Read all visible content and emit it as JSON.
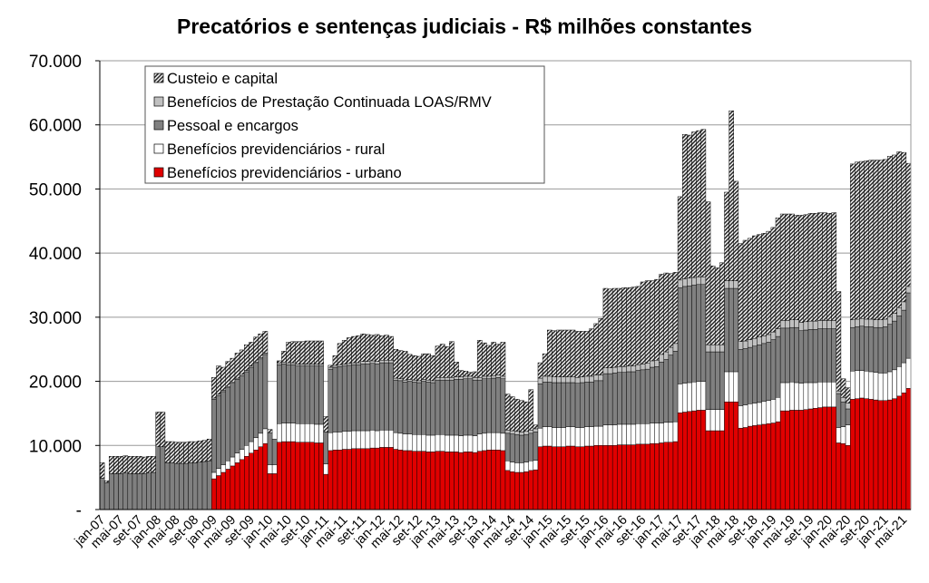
{
  "chart_data": {
    "type": "bar",
    "stacked": true,
    "title": "Precatórios e sentenças judiciais - R$ milhões constantes",
    "xlabel": "",
    "ylabel": "",
    "ylim": [
      0,
      70000
    ],
    "yticks": [
      0,
      10000,
      20000,
      30000,
      40000,
      50000,
      60000,
      70000
    ],
    "ytick_labels": [
      "-",
      "10.000",
      "20.000",
      "30.000",
      "40.000",
      "50.000",
      "60.000",
      "70.000"
    ],
    "grid": true,
    "legend_placement": "top-left",
    "categories": [
      "jan-07",
      "fev-07",
      "mar-07",
      "abr-07",
      "mai-07",
      "jun-07",
      "jul-07",
      "ago-07",
      "set-07",
      "out-07",
      "nov-07",
      "dez-07",
      "jan-08",
      "fev-08",
      "mar-08",
      "abr-08",
      "mai-08",
      "jun-08",
      "jul-08",
      "ago-08",
      "set-08",
      "out-08",
      "nov-08",
      "dez-08",
      "jan-09",
      "fev-09",
      "mar-09",
      "abr-09",
      "mai-09",
      "jun-09",
      "jul-09",
      "ago-09",
      "set-09",
      "out-09",
      "nov-09",
      "dez-09",
      "jan-10",
      "fev-10",
      "mar-10",
      "abr-10",
      "mai-10",
      "jun-10",
      "jul-10",
      "ago-10",
      "set-10",
      "out-10",
      "nov-10",
      "dez-10",
      "jan-11",
      "fev-11",
      "mar-11",
      "abr-11",
      "mai-11",
      "jun-11",
      "jul-11",
      "ago-11",
      "set-11",
      "out-11",
      "nov-11",
      "dez-11",
      "jan-12",
      "fev-12",
      "mar-12",
      "abr-12",
      "mai-12",
      "jun-12",
      "jul-12",
      "ago-12",
      "set-12",
      "out-12",
      "nov-12",
      "dez-12",
      "jan-13",
      "fev-13",
      "mar-13",
      "abr-13",
      "mai-13",
      "jun-13",
      "jul-13",
      "ago-13",
      "set-13",
      "out-13",
      "nov-13",
      "dez-13",
      "jan-14",
      "fev-14",
      "mar-14",
      "abr-14",
      "mai-14",
      "jun-14",
      "jul-14",
      "ago-14",
      "set-14",
      "out-14",
      "nov-14",
      "dez-14",
      "jan-15",
      "fev-15",
      "mar-15",
      "abr-15",
      "mai-15",
      "jun-15",
      "jul-15",
      "ago-15",
      "set-15",
      "out-15",
      "nov-15",
      "dez-15",
      "jan-16",
      "fev-16",
      "mar-16",
      "abr-16",
      "mai-16",
      "jun-16",
      "jul-16",
      "ago-16",
      "set-16",
      "out-16",
      "nov-16",
      "dez-16",
      "jan-17",
      "fev-17",
      "mar-17",
      "abr-17",
      "mai-17",
      "jun-17",
      "jul-17",
      "ago-17",
      "set-17",
      "out-17",
      "nov-17",
      "dez-17",
      "jan-18",
      "fev-18",
      "mar-18",
      "abr-18",
      "mai-18",
      "jun-18",
      "jul-18",
      "ago-18",
      "set-18",
      "out-18",
      "nov-18",
      "dez-18",
      "jan-19",
      "fev-19",
      "mar-19",
      "abr-19",
      "mai-19",
      "jun-19",
      "jul-19",
      "ago-19",
      "set-19",
      "out-19",
      "nov-19",
      "dez-19",
      "jan-20",
      "fev-20",
      "mar-20",
      "abr-20",
      "mai-20",
      "jun-20",
      "jul-20",
      "ago-20",
      "set-20",
      "out-20",
      "nov-20",
      "dez-20",
      "jan-21",
      "fev-21",
      "mar-21",
      "abr-21",
      "mai-21",
      "jun-21"
    ],
    "series": [
      {
        "name": "Benefícios previdenciários - urbano",
        "color": "#e00000",
        "pattern": "solid",
        "values": [
          0,
          0,
          0,
          0,
          0,
          0,
          0,
          0,
          0,
          0,
          0,
          0,
          0,
          0,
          0,
          0,
          0,
          0,
          0,
          0,
          0,
          0,
          0,
          0,
          4800,
          5300,
          5800,
          6300,
          6800,
          7300,
          7800,
          8300,
          8800,
          9300,
          9800,
          10300,
          5600,
          5600,
          10500,
          10600,
          10600,
          10600,
          10500,
          10500,
          10500,
          10500,
          10400,
          10400,
          5500,
          9200,
          9300,
          9300,
          9400,
          9400,
          9500,
          9500,
          9500,
          9500,
          9600,
          9600,
          9700,
          9700,
          9700,
          9400,
          9300,
          9200,
          9200,
          9100,
          9100,
          9100,
          9000,
          9000,
          9100,
          9100,
          9000,
          9000,
          9000,
          8900,
          9000,
          9000,
          8900,
          9100,
          9200,
          9300,
          9300,
          9300,
          9200,
          6100,
          5900,
          5800,
          5800,
          5900,
          6100,
          6200,
          9800,
          9900,
          9900,
          9800,
          9800,
          9800,
          9900,
          9900,
          9800,
          9800,
          9900,
          9900,
          10000,
          10000,
          10000,
          10000,
          10000,
          10100,
          10100,
          10100,
          10100,
          10200,
          10200,
          10200,
          10300,
          10300,
          10400,
          10500,
          10500,
          10600,
          15100,
          15200,
          15300,
          15400,
          15500,
          15500,
          12300,
          12300,
          12300,
          12300,
          16800,
          16800,
          16800,
          12700,
          12800,
          13000,
          13100,
          13200,
          13300,
          13400,
          13500,
          13700,
          15400,
          15400,
          15500,
          15500,
          15500,
          15600,
          15700,
          15800,
          15900,
          16000,
          16000,
          16000,
          10400,
          10300,
          10000,
          17200,
          17300,
          17400,
          17300,
          17200,
          17100,
          17000,
          17000,
          17100,
          17300,
          17700,
          18200,
          18900
        ]
      },
      {
        "name": "Benefícios previdenciários - rural",
        "color": "#ffffff",
        "pattern": "solid",
        "values": [
          0,
          0,
          0,
          0,
          0,
          0,
          0,
          0,
          0,
          0,
          0,
          0,
          0,
          0,
          0,
          0,
          0,
          0,
          0,
          0,
          0,
          0,
          0,
          0,
          1000,
          1100,
          1200,
          1300,
          1400,
          1500,
          1600,
          1700,
          1800,
          1900,
          2100,
          2300,
          1400,
          1400,
          2900,
          2900,
          2900,
          2900,
          2900,
          2900,
          2900,
          2900,
          2900,
          2900,
          1600,
          2800,
          2800,
          2800,
          2800,
          2800,
          2800,
          2800,
          2800,
          2800,
          2800,
          2700,
          2700,
          2700,
          2700,
          2600,
          2600,
          2600,
          2600,
          2600,
          2600,
          2600,
          2600,
          2600,
          2600,
          2600,
          2600,
          2600,
          2600,
          2600,
          2600,
          2600,
          2600,
          2700,
          2700,
          2700,
          2700,
          2700,
          2700,
          1500,
          1500,
          1500,
          1500,
          1500,
          1500,
          1500,
          2900,
          3000,
          3000,
          3000,
          3000,
          3000,
          3000,
          3000,
          3000,
          3000,
          3000,
          3000,
          3000,
          3000,
          3200,
          3200,
          3200,
          3200,
          3200,
          3200,
          3200,
          3200,
          3200,
          3200,
          3200,
          3200,
          3100,
          3100,
          3100,
          3100,
          4500,
          4500,
          4500,
          4500,
          4500,
          4500,
          3300,
          3300,
          3300,
          3300,
          4700,
          4700,
          4700,
          3500,
          3500,
          3500,
          3500,
          3500,
          3600,
          3600,
          3700,
          3800,
          4400,
          4400,
          4400,
          4300,
          4200,
          4200,
          4100,
          4000,
          4000,
          3900,
          3900,
          3900,
          2400,
          2600,
          3200,
          4400,
          4400,
          4300,
          4300,
          4300,
          4300,
          4300,
          4300,
          4400,
          4500,
          4600,
          4700,
          4700
        ]
      },
      {
        "name": "Pessoal e encargos",
        "color": "#808080",
        "pattern": "solid",
        "values": [
          4900,
          4200,
          5600,
          5600,
          5600,
          5700,
          5600,
          5600,
          5600,
          5600,
          5700,
          5800,
          9800,
          9800,
          7300,
          7300,
          7200,
          7200,
          7200,
          7300,
          7300,
          7400,
          7500,
          7600,
          11400,
          11400,
          11400,
          11400,
          11500,
          11500,
          11500,
          11500,
          11600,
          11600,
          11600,
          11600,
          5000,
          4000,
          9200,
          9200,
          9100,
          9100,
          9000,
          9000,
          9000,
          9000,
          9100,
          9100,
          5000,
          9900,
          10100,
          10200,
          10200,
          10300,
          10300,
          10300,
          10400,
          10400,
          10400,
          10400,
          10500,
          10500,
          10500,
          8200,
          8200,
          8100,
          8200,
          8200,
          8100,
          8300,
          8300,
          8200,
          8500,
          8500,
          8600,
          8600,
          8700,
          8800,
          8800,
          8800,
          8700,
          8400,
          8500,
          8400,
          8500,
          8600,
          8500,
          4300,
          4400,
          4400,
          4300,
          4300,
          4300,
          4400,
          6900,
          7000,
          7000,
          7000,
          7000,
          7000,
          6900,
          6900,
          6900,
          7000,
          7000,
          7000,
          7100,
          7100,
          8000,
          8000,
          8100,
          8100,
          8100,
          8200,
          8200,
          8300,
          8400,
          8500,
          8700,
          8800,
          9500,
          9800,
          10500,
          11000,
          15000,
          15100,
          15100,
          15100,
          15100,
          15100,
          9000,
          9000,
          9000,
          9000,
          13000,
          13000,
          13000,
          8800,
          8800,
          8800,
          8900,
          9000,
          9000,
          9100,
          9300,
          9500,
          8500,
          8500,
          8500,
          8600,
          8200,
          8200,
          8300,
          8300,
          8300,
          8300,
          8300,
          8300,
          5300,
          3900,
          2500,
          6800,
          6800,
          6900,
          6900,
          7000,
          7000,
          7100,
          7200,
          7400,
          7600,
          7900,
          8200,
          10200
        ]
      },
      {
        "name": "Benefícios de Prestação Continuada LOAS/RMV",
        "color": "#c0c0c0",
        "pattern": "solid",
        "values": [
          0,
          0,
          0,
          0,
          0,
          0,
          0,
          0,
          0,
          0,
          0,
          0,
          0,
          0,
          0,
          0,
          0,
          0,
          0,
          0,
          0,
          0,
          0,
          0,
          200,
          200,
          200,
          200,
          200,
          200,
          200,
          200,
          200,
          200,
          200,
          200,
          0,
          0,
          300,
          300,
          300,
          300,
          300,
          300,
          300,
          300,
          300,
          300,
          0,
          300,
          300,
          300,
          300,
          300,
          300,
          300,
          400,
          400,
          400,
          400,
          400,
          400,
          400,
          300,
          300,
          300,
          300,
          300,
          300,
          300,
          300,
          300,
          400,
          400,
          400,
          400,
          400,
          400,
          400,
          400,
          400,
          400,
          400,
          400,
          400,
          400,
          400,
          500,
          500,
          500,
          500,
          500,
          500,
          500,
          900,
          900,
          900,
          900,
          900,
          900,
          900,
          900,
          900,
          900,
          900,
          900,
          900,
          900,
          900,
          900,
          900,
          900,
          900,
          900,
          900,
          900,
          900,
          900,
          1000,
          1000,
          1200,
          1200,
          1200,
          1200,
          1200,
          1200,
          1200,
          1200,
          1200,
          1200,
          1100,
          1100,
          1100,
          1100,
          1200,
          1200,
          1200,
          1200,
          1200,
          1200,
          1200,
          1200,
          1200,
          1200,
          1200,
          1200,
          1200,
          1200,
          1200,
          1200,
          1300,
          1300,
          1300,
          1300,
          1300,
          1300,
          1300,
          1300,
          400,
          700,
          900,
          1200,
          1200,
          1200,
          1200,
          1200,
          1200,
          1200,
          1200,
          1200,
          1200,
          1300,
          1300,
          1000
        ]
      },
      {
        "name": "Custeio e capital",
        "color": "#000000",
        "pattern": "hatched",
        "values": [
          2400,
          300,
          2700,
          2700,
          2700,
          2700,
          2700,
          2700,
          2700,
          2600,
          2600,
          2500,
          5400,
          5400,
          3300,
          3300,
          3300,
          3300,
          3300,
          3300,
          3300,
          3300,
          3300,
          3400,
          3200,
          4400,
          3600,
          3900,
          3700,
          3900,
          3800,
          4000,
          3700,
          3900,
          3700,
          3400,
          500,
          0,
          300,
          1700,
          3200,
          3300,
          3500,
          3500,
          3600,
          3600,
          3600,
          3600,
          2400,
          300,
          1500,
          3300,
          3700,
          4000,
          4100,
          4200,
          4300,
          4200,
          4000,
          4200,
          3800,
          3900,
          3700,
          4500,
          4400,
          4500,
          3900,
          3800,
          3800,
          4000,
          4100,
          3900,
          4900,
          5200,
          4800,
          5600,
          2300,
          1000,
          800,
          600,
          900,
          5800,
          5200,
          4800,
          5200,
          4800,
          5300,
          5600,
          5300,
          5000,
          4900,
          4600,
          6300,
          600,
          2400,
          3500,
          7200,
          7200,
          7300,
          7300,
          7300,
          7300,
          7200,
          7100,
          7000,
          7400,
          8000,
          8800,
          12400,
          12300,
          12300,
          12200,
          12300,
          12200,
          12300,
          12200,
          12800,
          12900,
          12500,
          12600,
          12500,
          12300,
          11500,
          11100,
          13000,
          22500,
          22300,
          22700,
          22800,
          23000,
          22300,
          12300,
          12000,
          12800,
          13800,
          26500,
          15500,
          15300,
          15700,
          15800,
          16000,
          16000,
          16000,
          16100,
          16300,
          17300,
          16600,
          16600,
          16500,
          16300,
          16700,
          16700,
          16800,
          16800,
          16800,
          16800,
          16700,
          16800,
          15500,
          2900,
          2400,
          24300,
          24500,
          24500,
          24700,
          24800,
          24900,
          24900,
          24900,
          25000,
          24700,
          24300,
          23300,
          19200
        ]
      }
    ]
  }
}
